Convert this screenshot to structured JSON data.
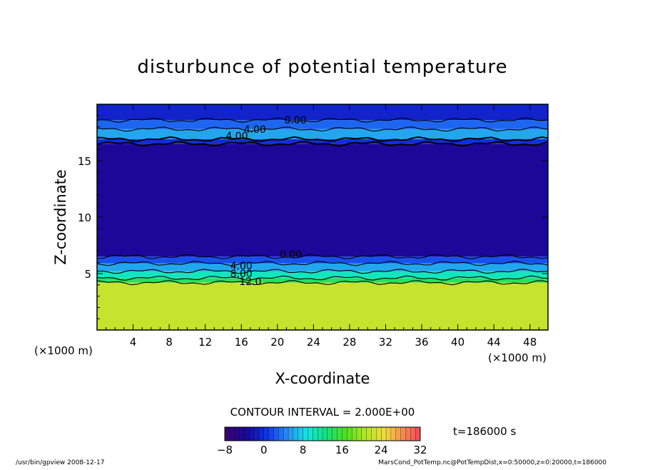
{
  "colors": {
    "background": "#ffffff",
    "frame": "#000000"
  },
  "chart_data": {
    "type": "heatmap",
    "title": "disturbunce of potential temperature",
    "xlabel": "X-coordinate",
    "ylabel": "Z-coordinate",
    "x_unit_left": "(×1000 m)",
    "x_unit_right": "(×1000 m)",
    "xlim": [
      0,
      50
    ],
    "ylim": [
      0,
      20
    ],
    "x_ticks": [
      4,
      8,
      12,
      16,
      20,
      24,
      28,
      32,
      36,
      40,
      44,
      48
    ],
    "y_ticks": [
      5,
      10,
      15
    ],
    "contour_interval_text": "CONTOUR INTERVAL = 2.000E+00",
    "time_text": "t=186000 s",
    "contour_labels": [
      {
        "text": "0.00",
        "x": 22,
        "z": 18.6
      },
      {
        "text": "4.00",
        "x": 17.5,
        "z": 17.8
      },
      {
        "text": "4.00",
        "x": 15.5,
        "z": 17.2
      },
      {
        "text": "0.00",
        "x": 21.5,
        "z": 6.7
      },
      {
        "text": "4.00",
        "x": 16,
        "z": 5.7
      },
      {
        "text": "8.00",
        "x": 16,
        "z": 5.0
      },
      {
        "text": "12.0",
        "x": 17,
        "z": 4.3
      }
    ],
    "field_layers": [
      {
        "z_from": 0,
        "z_to": 4.2,
        "value": 22
      },
      {
        "z_from": 4.2,
        "z_to": 4.6,
        "value": 14
      },
      {
        "z_from": 4.6,
        "z_to": 5.2,
        "value": 10
      },
      {
        "z_from": 5.2,
        "z_to": 5.9,
        "value": 6
      },
      {
        "z_from": 5.9,
        "z_to": 6.5,
        "value": 2
      },
      {
        "z_from": 6.5,
        "z_to": 16.5,
        "value": -4
      },
      {
        "z_from": 16.5,
        "z_to": 16.9,
        "value": 0
      },
      {
        "z_from": 16.9,
        "z_to": 17.8,
        "value": 6
      },
      {
        "z_from": 17.8,
        "z_to": 18.6,
        "value": 3
      },
      {
        "z_from": 18.6,
        "z_to": 20,
        "value": -1
      }
    ],
    "colorbar": {
      "min": -8,
      "max": 32,
      "ticks": [
        -8,
        0,
        8,
        16,
        24,
        32
      ],
      "tick_labels": [
        "−8",
        "0",
        "8",
        "16",
        "24",
        "32"
      ]
    }
  },
  "footer": {
    "left": "/usr/bin/gpview  2008-12-17",
    "right": "MarsCond_PotTemp.nc@PotTempDist,x=0:50000,z=0:20000,t=186000"
  }
}
